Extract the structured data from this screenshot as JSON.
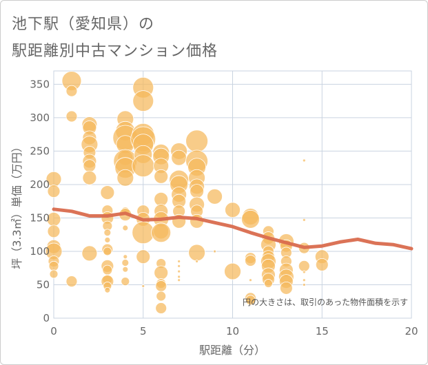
{
  "title": {
    "line1": "池下駅（愛知県）の",
    "line2": "駅距離別中古マンション価格"
  },
  "chart_data": {
    "type": "scatter",
    "xlabel": "駅距離（分）",
    "ylabel": "坪（3.3㎡）単価（万円）",
    "xlim": [
      0,
      20
    ],
    "ylim": [
      0,
      370
    ],
    "xticks": [
      "0",
      "5",
      "10",
      "15",
      "20"
    ],
    "yticks": [
      "0",
      "50",
      "100",
      "150",
      "200",
      "250",
      "300",
      "350"
    ],
    "xtick_values": [
      0,
      5,
      10,
      15,
      20
    ],
    "ytick_values": [
      0,
      50,
      100,
      150,
      200,
      250,
      300,
      350
    ],
    "grid": true,
    "annotation": "円の大きさは、取引のあった物件面積を示す",
    "colors": {
      "bubble": "#f5b85c",
      "trend": "#d96b4e",
      "grid": "#c9d3e0"
    },
    "bubbles": [
      {
        "x": 0,
        "y": 208,
        "r": 11
      },
      {
        "x": 0,
        "y": 190,
        "r": 9
      },
      {
        "x": 0,
        "y": 148,
        "r": 10
      },
      {
        "x": 0,
        "y": 130,
        "r": 9
      },
      {
        "x": 0,
        "y": 107,
        "r": 10
      },
      {
        "x": 0,
        "y": 100,
        "r": 12
      },
      {
        "x": 0,
        "y": 85,
        "r": 8
      },
      {
        "x": 0,
        "y": 78,
        "r": 7
      },
      {
        "x": 0,
        "y": 66,
        "r": 6
      },
      {
        "x": 1,
        "y": 355,
        "r": 14
      },
      {
        "x": 1,
        "y": 340,
        "r": 8
      },
      {
        "x": 1,
        "y": 302,
        "r": 8
      },
      {
        "x": 1,
        "y": 55,
        "r": 8
      },
      {
        "x": 2,
        "y": 290,
        "r": 11
      },
      {
        "x": 2,
        "y": 285,
        "r": 10
      },
      {
        "x": 2,
        "y": 270,
        "r": 10
      },
      {
        "x": 2,
        "y": 260,
        "r": 12
      },
      {
        "x": 2,
        "y": 248,
        "r": 9
      },
      {
        "x": 2,
        "y": 235,
        "r": 10
      },
      {
        "x": 2,
        "y": 228,
        "r": 9
      },
      {
        "x": 2,
        "y": 210,
        "r": 10
      },
      {
        "x": 2,
        "y": 97,
        "r": 11
      },
      {
        "x": 3,
        "y": 188,
        "r": 10
      },
      {
        "x": 3,
        "y": 161,
        "r": 8
      },
      {
        "x": 3,
        "y": 150,
        "r": 9
      },
      {
        "x": 3,
        "y": 138,
        "r": 7
      },
      {
        "x": 3,
        "y": 128,
        "r": 5
      },
      {
        "x": 3,
        "y": 117,
        "r": 4
      },
      {
        "x": 3,
        "y": 103,
        "r": 8
      },
      {
        "x": 3,
        "y": 100,
        "r": 6
      },
      {
        "x": 3,
        "y": 78,
        "r": 9
      },
      {
        "x": 3,
        "y": 72,
        "r": 7
      },
      {
        "x": 3,
        "y": 58,
        "r": 7
      },
      {
        "x": 3,
        "y": 55,
        "r": 9
      },
      {
        "x": 3,
        "y": 48,
        "r": 6
      },
      {
        "x": 3,
        "y": 42,
        "r": 4
      },
      {
        "x": 4,
        "y": 298,
        "r": 12
      },
      {
        "x": 4,
        "y": 280,
        "r": 14
      },
      {
        "x": 4,
        "y": 270,
        "r": 18
      },
      {
        "x": 4,
        "y": 260,
        "r": 13
      },
      {
        "x": 4,
        "y": 240,
        "r": 11
      },
      {
        "x": 4,
        "y": 235,
        "r": 17
      },
      {
        "x": 4,
        "y": 225,
        "r": 15
      },
      {
        "x": 4,
        "y": 210,
        "r": 12
      },
      {
        "x": 4,
        "y": 160,
        "r": 6
      },
      {
        "x": 4,
        "y": 155,
        "r": 9
      },
      {
        "x": 4,
        "y": 135,
        "r": 4
      },
      {
        "x": 4,
        "y": 92,
        "r": 3
      },
      {
        "x": 4,
        "y": 83,
        "r": 5
      },
      {
        "x": 4,
        "y": 73,
        "r": 4
      },
      {
        "x": 4,
        "y": 55,
        "r": 6
      },
      {
        "x": 5,
        "y": 345,
        "r": 15
      },
      {
        "x": 5,
        "y": 325,
        "r": 15
      },
      {
        "x": 5,
        "y": 275,
        "r": 16
      },
      {
        "x": 5,
        "y": 268,
        "r": 18
      },
      {
        "x": 5,
        "y": 260,
        "r": 15
      },
      {
        "x": 5,
        "y": 245,
        "r": 13
      },
      {
        "x": 5,
        "y": 228,
        "r": 16
      },
      {
        "x": 5,
        "y": 160,
        "r": 9
      },
      {
        "x": 5,
        "y": 148,
        "r": 10
      },
      {
        "x": 5,
        "y": 128,
        "r": 16
      },
      {
        "x": 5,
        "y": 92,
        "r": 10
      },
      {
        "x": 5,
        "y": 48,
        "r": 2
      },
      {
        "x": 6,
        "y": 248,
        "r": 12
      },
      {
        "x": 6,
        "y": 242,
        "r": 12
      },
      {
        "x": 6,
        "y": 228,
        "r": 11
      },
      {
        "x": 6,
        "y": 212,
        "r": 10
      },
      {
        "x": 6,
        "y": 178,
        "r": 10
      },
      {
        "x": 6,
        "y": 160,
        "r": 10
      },
      {
        "x": 6,
        "y": 148,
        "r": 11
      },
      {
        "x": 6,
        "y": 130,
        "r": 11
      },
      {
        "x": 6,
        "y": 128,
        "r": 14
      },
      {
        "x": 6,
        "y": 82,
        "r": 7
      },
      {
        "x": 6,
        "y": 68,
        "r": 10
      },
      {
        "x": 6,
        "y": 52,
        "r": 7
      },
      {
        "x": 6,
        "y": 48,
        "r": 8
      },
      {
        "x": 6,
        "y": 33,
        "r": 7
      },
      {
        "x": 6,
        "y": 15,
        "r": 8
      },
      {
        "x": 7,
        "y": 250,
        "r": 12
      },
      {
        "x": 7,
        "y": 240,
        "r": 11
      },
      {
        "x": 7,
        "y": 207,
        "r": 14
      },
      {
        "x": 7,
        "y": 200,
        "r": 13
      },
      {
        "x": 7,
        "y": 185,
        "r": 11
      },
      {
        "x": 7,
        "y": 175,
        "r": 10
      },
      {
        "x": 7,
        "y": 160,
        "r": 9
      },
      {
        "x": 7,
        "y": 145,
        "r": 10
      },
      {
        "x": 7,
        "y": 85,
        "r": 2
      },
      {
        "x": 7,
        "y": 78,
        "r": 2
      },
      {
        "x": 7,
        "y": 70,
        "r": 2
      },
      {
        "x": 7,
        "y": 62,
        "r": 2
      },
      {
        "x": 7,
        "y": 57,
        "r": 2
      },
      {
        "x": 8,
        "y": 265,
        "r": 16
      },
      {
        "x": 8,
        "y": 235,
        "r": 16
      },
      {
        "x": 8,
        "y": 226,
        "r": 13
      },
      {
        "x": 8,
        "y": 210,
        "r": 12
      },
      {
        "x": 8,
        "y": 197,
        "r": 11
      },
      {
        "x": 8,
        "y": 190,
        "r": 10
      },
      {
        "x": 8,
        "y": 170,
        "r": 11
      },
      {
        "x": 8,
        "y": 160,
        "r": 9
      },
      {
        "x": 8,
        "y": 145,
        "r": 10
      },
      {
        "x": 8,
        "y": 98,
        "r": 12
      },
      {
        "x": 8,
        "y": 85,
        "r": 2
      },
      {
        "x": 9,
        "y": 182,
        "r": 11
      },
      {
        "x": 9,
        "y": 100,
        "r": 2
      },
      {
        "x": 10,
        "y": 162,
        "r": 11
      },
      {
        "x": 10,
        "y": 70,
        "r": 12
      },
      {
        "x": 11,
        "y": 152,
        "r": 12
      },
      {
        "x": 11,
        "y": 148,
        "r": 13
      },
      {
        "x": 11,
        "y": 90,
        "r": 8
      },
      {
        "x": 11,
        "y": 86,
        "r": 8
      },
      {
        "x": 11,
        "y": 30,
        "r": 8
      },
      {
        "x": 11,
        "y": 27,
        "r": 7
      },
      {
        "x": 11,
        "y": 57,
        "r": 2
      },
      {
        "x": 12,
        "y": 130,
        "r": 8
      },
      {
        "x": 12,
        "y": 120,
        "r": 9
      },
      {
        "x": 12,
        "y": 110,
        "r": 11
      },
      {
        "x": 12,
        "y": 100,
        "r": 8
      },
      {
        "x": 12,
        "y": 92,
        "r": 9
      },
      {
        "x": 12,
        "y": 85,
        "r": 11
      },
      {
        "x": 12,
        "y": 78,
        "r": 10
      },
      {
        "x": 12,
        "y": 65,
        "r": 10
      },
      {
        "x": 12,
        "y": 58,
        "r": 9
      },
      {
        "x": 12,
        "y": 52,
        "r": 6
      },
      {
        "x": 13,
        "y": 115,
        "r": 11
      },
      {
        "x": 13,
        "y": 108,
        "r": 9
      },
      {
        "x": 13,
        "y": 98,
        "r": 8
      },
      {
        "x": 13,
        "y": 85,
        "r": 8
      },
      {
        "x": 13,
        "y": 72,
        "r": 10
      },
      {
        "x": 13,
        "y": 62,
        "r": 11
      },
      {
        "x": 13,
        "y": 55,
        "r": 10
      },
      {
        "x": 13,
        "y": 45,
        "r": 9
      },
      {
        "x": 14,
        "y": 105,
        "r": 8
      },
      {
        "x": 14,
        "y": 78,
        "r": 8
      },
      {
        "x": 14,
        "y": 69,
        "r": 2
      },
      {
        "x": 14,
        "y": 57,
        "r": 2
      },
      {
        "x": 14,
        "y": 50,
        "r": 2
      },
      {
        "x": 14,
        "y": 236,
        "r": 2
      },
      {
        "x": 14,
        "y": 147,
        "r": 2
      },
      {
        "x": 15,
        "y": 92,
        "r": 10
      },
      {
        "x": 15,
        "y": 80,
        "r": 9
      }
    ],
    "trend": [
      {
        "x": 0,
        "y": 163
      },
      {
        "x": 1,
        "y": 160
      },
      {
        "x": 2,
        "y": 153
      },
      {
        "x": 3,
        "y": 153
      },
      {
        "x": 4,
        "y": 157
      },
      {
        "x": 5,
        "y": 147
      },
      {
        "x": 6,
        "y": 148
      },
      {
        "x": 7,
        "y": 151
      },
      {
        "x": 8,
        "y": 149
      },
      {
        "x": 9,
        "y": 143
      },
      {
        "x": 10,
        "y": 137
      },
      {
        "x": 11,
        "y": 128
      },
      {
        "x": 12,
        "y": 120
      },
      {
        "x": 13,
        "y": 113
      },
      {
        "x": 14,
        "y": 106
      },
      {
        "x": 15,
        "y": 108
      },
      {
        "x": 16,
        "y": 114
      },
      {
        "x": 17,
        "y": 118
      },
      {
        "x": 18,
        "y": 112
      },
      {
        "x": 19,
        "y": 110
      },
      {
        "x": 20,
        "y": 104
      }
    ]
  }
}
